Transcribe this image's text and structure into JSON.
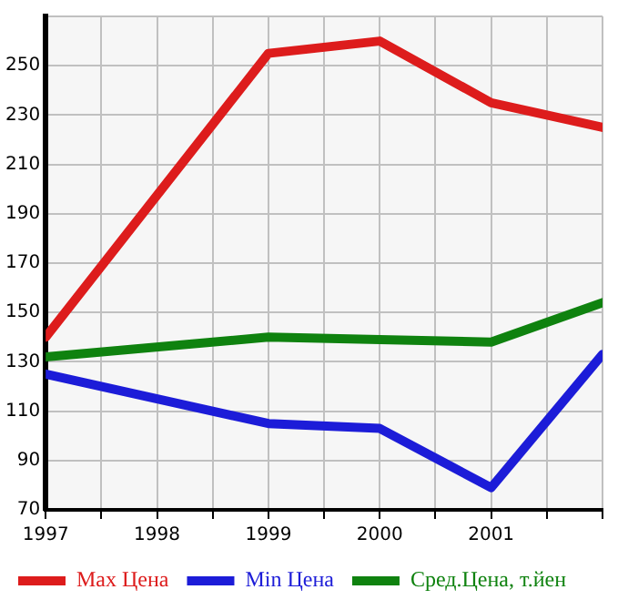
{
  "chart_data": {
    "type": "line",
    "x": [
      1997,
      1999,
      2000,
      2001,
      2002
    ],
    "series": [
      {
        "name": "Max Цена",
        "color": "#dd1c1c",
        "values": [
          140,
          255,
          260,
          235,
          225
        ]
      },
      {
        "name": "Min Цена",
        "color": "#1c1cd8",
        "values": [
          125,
          105,
          103,
          79,
          133
        ]
      },
      {
        "name": "Сред.Цена, т.йен",
        "color": "#0f820f",
        "values": [
          132,
          140,
          139,
          138,
          154
        ]
      }
    ],
    "xlim": [
      1997,
      2002
    ],
    "xticks": [
      1997,
      {
        "value": 1997.5,
        "label": null
      },
      1998,
      {
        "value": 1998.5,
        "label": null
      },
      1999,
      {
        "value": 1999.5,
        "label": null
      },
      2000,
      {
        "value": 2000.5,
        "label": null
      },
      2001,
      {
        "value": 2001.5,
        "label": null
      },
      {
        "value": 2002,
        "label": null
      }
    ],
    "ylim": [
      70,
      270
    ],
    "yticks": [
      70,
      90,
      110,
      130,
      150,
      170,
      190,
      210,
      230,
      250,
      {
        "value": 270,
        "label": null
      }
    ],
    "grid": true,
    "legend": "bottom",
    "marker": "none",
    "line_style": "solid"
  }
}
